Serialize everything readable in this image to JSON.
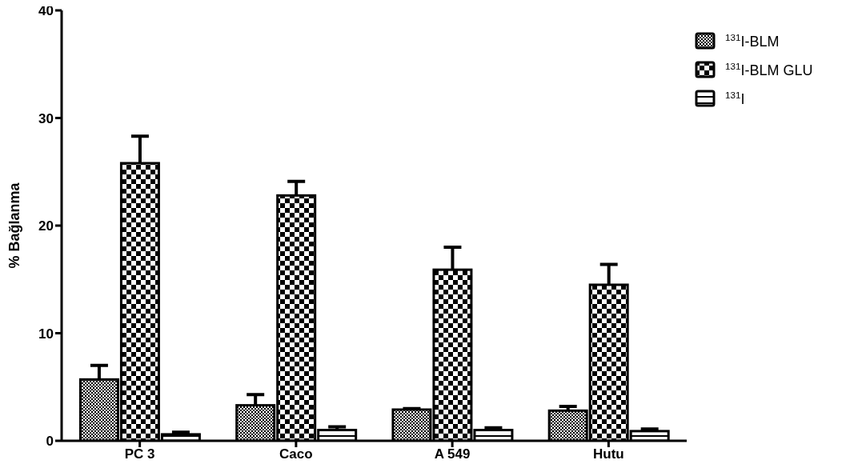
{
  "chart_data": {
    "type": "bar",
    "ylabel": "% Bağlanma",
    "categories": [
      "PC 3",
      "Caco",
      "A 549",
      "Hutu"
    ],
    "series": [
      {
        "name": "$^{131}$I-BLM",
        "color": "#000000",
        "values": [
          5.7,
          3.3,
          2.9,
          2.8
        ],
        "errors": [
          [
            5.7,
            7.0
          ],
          [
            3.3,
            4.3
          ],
          [
            2.9,
            3.0
          ],
          [
            2.8,
            3.2
          ]
        ]
      },
      {
        "name": "$^{131}$I-BLM GLU",
        "color": "#000000",
        "values": [
          25.8,
          22.8,
          15.9,
          14.5
        ],
        "errors": [
          [
            25.8,
            28.3
          ],
          [
            22.8,
            24.1
          ],
          [
            15.9,
            18.0
          ],
          [
            14.5,
            16.4
          ]
        ]
      },
      {
        "name": "$^{131}$I",
        "color": "#000000",
        "values": [
          0.6,
          1.0,
          1.0,
          0.9
        ],
        "errors": [
          [
            0.6,
            0.8
          ],
          [
            1.0,
            1.3
          ],
          [
            1.0,
            1.2
          ],
          [
            0.9,
            1.1
          ]
        ]
      }
    ],
    "ylim": [
      0,
      40
    ],
    "yticks": [
      0,
      10,
      20,
      30,
      40
    ],
    "grid": false,
    "legend": "top right"
  }
}
